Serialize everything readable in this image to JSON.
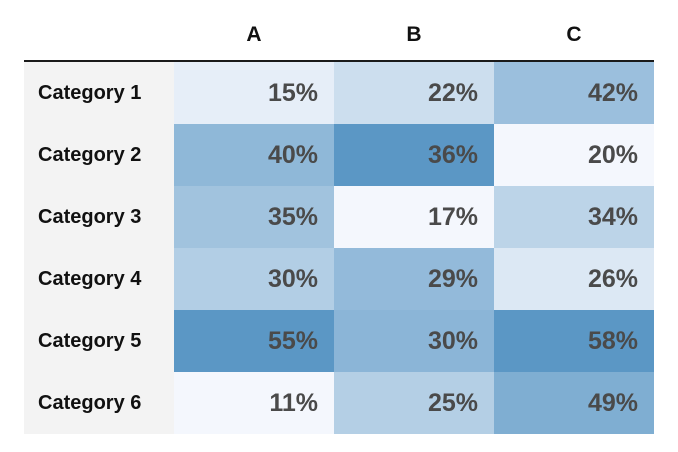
{
  "chart_data": {
    "type": "heatmap",
    "columns": [
      "A",
      "B",
      "C"
    ],
    "rows": [
      "Category 1",
      "Category 2",
      "Category 3",
      "Category 4",
      "Category 5",
      "Category 6"
    ],
    "values": [
      [
        15,
        22,
        42
      ],
      [
        40,
        36,
        20
      ],
      [
        35,
        17,
        34
      ],
      [
        30,
        29,
        26
      ],
      [
        55,
        30,
        58
      ],
      [
        11,
        25,
        49
      ]
    ],
    "value_format": "percent",
    "color_scale": {
      "low": "#f4f7fd",
      "high": "#5b97c5",
      "per_column": true
    }
  }
}
